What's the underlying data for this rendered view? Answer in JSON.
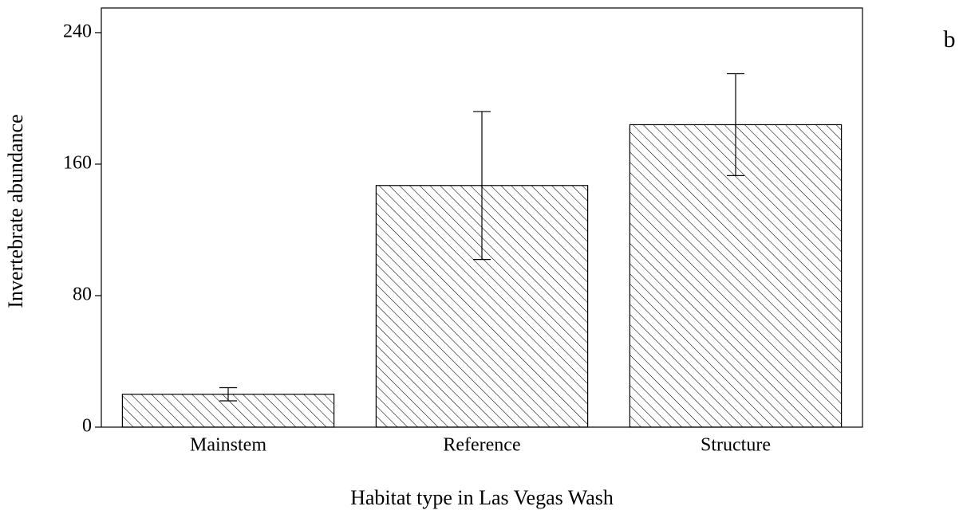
{
  "chart_data": {
    "type": "bar",
    "panel_label": "b",
    "x_label": "Habitat type in Las Vegas Wash",
    "y_label": "Invertebrate abundance",
    "categories": [
      "Mainstem",
      "Reference",
      "Structure"
    ],
    "values": [
      20,
      147,
      184
    ],
    "errors": [
      4,
      45,
      31
    ],
    "color": "#000000",
    "ylim": [
      0,
      255
    ],
    "yticks": [
      0,
      80,
      160,
      240
    ],
    "grid": false
  }
}
